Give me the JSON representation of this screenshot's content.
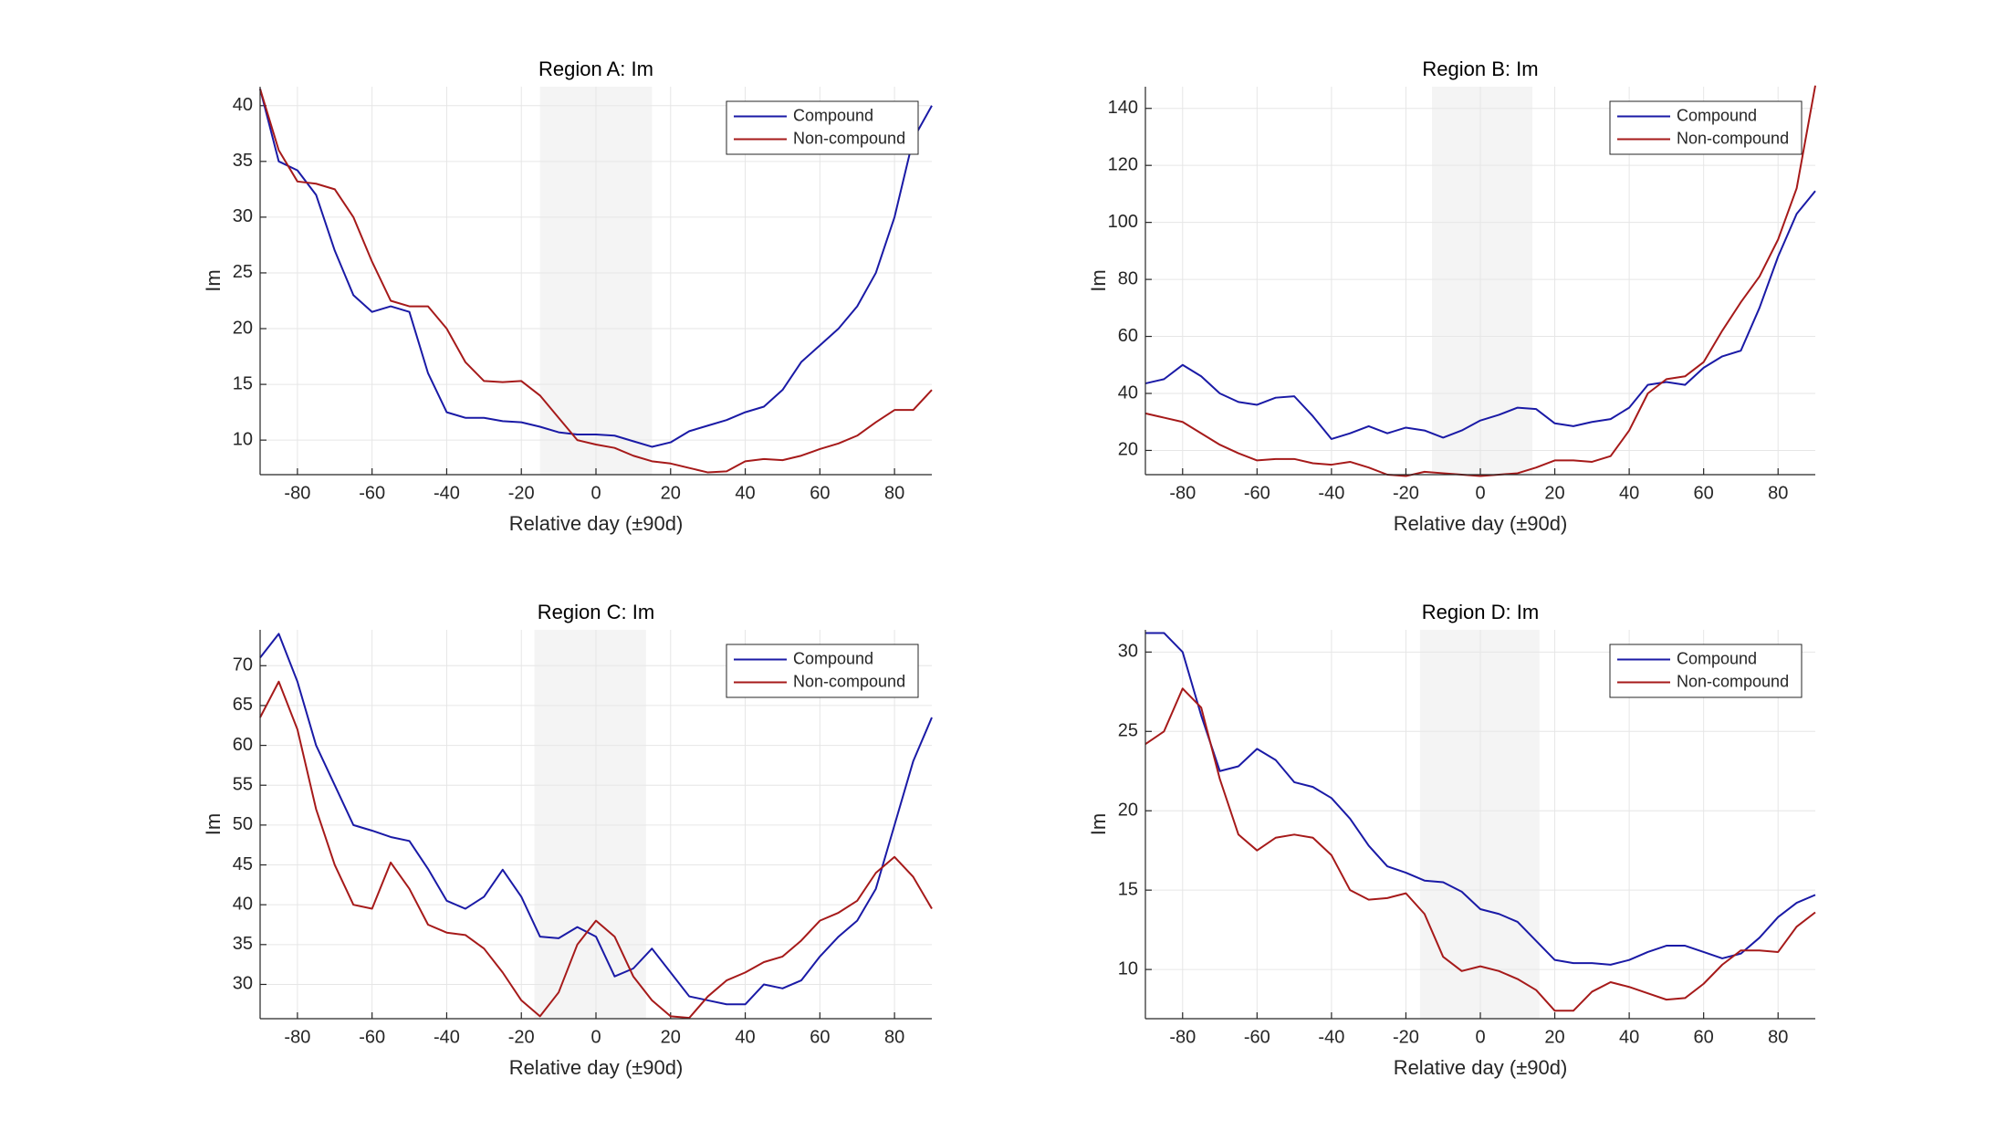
{
  "chart_data": [
    {
      "type": "line",
      "title": "Region A: Im",
      "xlabel": "Relative day (±90d)",
      "ylabel": "Im",
      "x": [
        -90,
        -85,
        -80,
        -75,
        -70,
        -65,
        -60,
        -55,
        -50,
        -45,
        -40,
        -35,
        -30,
        -25,
        -20,
        -15,
        -10,
        -5,
        0,
        5,
        10,
        15,
        20,
        25,
        30,
        35,
        40,
        45,
        50,
        55,
        60,
        65,
        70,
        75,
        80,
        85,
        90
      ],
      "series": [
        {
          "name": "Compound",
          "color": "#1a1aa6",
          "values": [
            41.5,
            35,
            34.2,
            32,
            27,
            23,
            21.5,
            22,
            21.5,
            16,
            12.5,
            12,
            12,
            11.7,
            11.6,
            11.2,
            10.7,
            10.5,
            10.5,
            10.4,
            9.9,
            9.4,
            9.8,
            10.8,
            11.3,
            11.8,
            12.5,
            13,
            14.5,
            17,
            18.5,
            20,
            22,
            25,
            30,
            37,
            40
          ]
        },
        {
          "name": "Non-compound",
          "color": "#a61a1a",
          "values": [
            41.5,
            36,
            33.2,
            33,
            32.5,
            30,
            26,
            22.5,
            22,
            22,
            20,
            17,
            15.3,
            15.2,
            15.3,
            14,
            12,
            10,
            9.6,
            9.3,
            8.6,
            8.1,
            7.9,
            7.5,
            7.1,
            7.2,
            8.1,
            8.3,
            8.2,
            8.6,
            9.2,
            9.7,
            10.4,
            11.6,
            12.7,
            12.7,
            14.5
          ]
        }
      ],
      "xlim": [
        -90,
        90
      ],
      "ylim": [
        6.9,
        41.7
      ],
      "xticks": [
        -80,
        -60,
        -40,
        -20,
        0,
        20,
        40,
        60,
        80
      ],
      "yticks": [
        10,
        15,
        20,
        25,
        30,
        35,
        40
      ],
      "grid": true,
      "legend": "northeast",
      "shaded_span": [
        -15,
        15
      ]
    },
    {
      "type": "line",
      "title": "Region B: Im",
      "xlabel": "Relative day (±90d)",
      "ylabel": "Im",
      "x": [
        -90,
        -85,
        -80,
        -75,
        -70,
        -65,
        -60,
        -55,
        -50,
        -45,
        -40,
        -35,
        -30,
        -25,
        -20,
        -15,
        -10,
        -5,
        0,
        5,
        10,
        15,
        20,
        25,
        30,
        35,
        40,
        45,
        50,
        55,
        60,
        65,
        70,
        75,
        80,
        85,
        90
      ],
      "series": [
        {
          "name": "Compound",
          "color": "#1a1aa6",
          "values": [
            43.5,
            45,
            50,
            46,
            40,
            37,
            36,
            38.5,
            39,
            32,
            24,
            26,
            28.5,
            26,
            28,
            27,
            24.5,
            27,
            30.5,
            32.5,
            35,
            34.5,
            29.5,
            28.5,
            30,
            31,
            35,
            43,
            44,
            43,
            49,
            53,
            55,
            70,
            88,
            103,
            111
          ]
        },
        {
          "name": "Non-compound",
          "color": "#a61a1a",
          "values": [
            33,
            31.5,
            30,
            26,
            22,
            19,
            16.5,
            17,
            17,
            15.5,
            15,
            16,
            14,
            11.5,
            11,
            12.5,
            12,
            11.5,
            11,
            11.5,
            12,
            14,
            16.5,
            16.5,
            16,
            18,
            27,
            40,
            45,
            46,
            51,
            62,
            72,
            81,
            94,
            112,
            148
          ]
        }
      ],
      "xlim": [
        -90,
        90
      ],
      "ylim": [
        11.5,
        147.6
      ],
      "xticks": [
        -80,
        -60,
        -40,
        -20,
        0,
        20,
        40,
        60,
        80
      ],
      "yticks": [
        20,
        40,
        60,
        80,
        100,
        120,
        140
      ],
      "grid": true,
      "legend": "northeast",
      "shaded_span": [
        -13,
        14
      ]
    },
    {
      "type": "line",
      "title": "Region C: Im",
      "xlabel": "Relative day (±90d)",
      "ylabel": "Im",
      "x": [
        -90,
        -85,
        -80,
        -75,
        -70,
        -65,
        -60,
        -55,
        -50,
        -45,
        -40,
        -35,
        -30,
        -25,
        -20,
        -15,
        -10,
        -5,
        0,
        5,
        10,
        15,
        20,
        25,
        30,
        35,
        40,
        45,
        50,
        55,
        60,
        65,
        70,
        75,
        80,
        85,
        90
      ],
      "series": [
        {
          "name": "Compound",
          "color": "#1a1aa6",
          "values": [
            71,
            74,
            68,
            60,
            55,
            50,
            49.3,
            48.5,
            48,
            44.5,
            40.5,
            39.5,
            41,
            44.4,
            41,
            36,
            35.8,
            37.2,
            36,
            31,
            32,
            34.5,
            31.5,
            28.5,
            28,
            27.5,
            27.5,
            30,
            29.5,
            30.5,
            33.5,
            36,
            38,
            42,
            50,
            58,
            63.5
          ]
        },
        {
          "name": "Non-compound",
          "color": "#a61a1a",
          "values": [
            63.5,
            68,
            62,
            52,
            45,
            40,
            39.5,
            45.3,
            42,
            37.5,
            36.5,
            36.2,
            34.5,
            31.5,
            28,
            26,
            29,
            35,
            38,
            36,
            31,
            28,
            26,
            25.8,
            28.5,
            30.5,
            31.5,
            32.8,
            33.5,
            35.5,
            38,
            39,
            40.5,
            44,
            46,
            43.5,
            39.5
          ]
        }
      ],
      "xlim": [
        -90,
        90
      ],
      "ylim": [
        25.7,
        74.5
      ],
      "xticks": [
        -80,
        -60,
        -40,
        -20,
        0,
        20,
        40,
        60,
        80
      ],
      "yticks": [
        30,
        35,
        40,
        45,
        50,
        55,
        60,
        65,
        70
      ],
      "grid": true,
      "legend": "northeast",
      "shaded_span": [
        -16.5,
        13.4
      ]
    },
    {
      "type": "line",
      "title": "Region D: Im",
      "xlabel": "Relative day (±90d)",
      "ylabel": "Im",
      "x": [
        -90,
        -85,
        -80,
        -75,
        -70,
        -65,
        -60,
        -55,
        -50,
        -45,
        -40,
        -35,
        -30,
        -25,
        -20,
        -15,
        -10,
        -5,
        0,
        5,
        10,
        15,
        20,
        25,
        30,
        35,
        40,
        45,
        50,
        55,
        60,
        65,
        70,
        75,
        80,
        85,
        90
      ],
      "series": [
        {
          "name": "Compound",
          "color": "#1a1aa6",
          "values": [
            31.2,
            31.2,
            30,
            26,
            22.5,
            22.8,
            23.9,
            23.2,
            21.8,
            21.5,
            20.8,
            19.5,
            17.8,
            16.5,
            16.1,
            15.6,
            15.5,
            14.9,
            13.8,
            13.5,
            13,
            11.8,
            10.6,
            10.4,
            10.4,
            10.3,
            10.6,
            11.1,
            11.5,
            11.5,
            11.1,
            10.7,
            11,
            12,
            13.3,
            14.2,
            14.7
          ]
        },
        {
          "name": "Non-compound",
          "color": "#a61a1a",
          "values": [
            24.2,
            25,
            27.7,
            26.5,
            22,
            18.5,
            17.5,
            18.3,
            18.5,
            18.3,
            17.2,
            15,
            14.4,
            14.5,
            14.8,
            13.5,
            10.8,
            9.9,
            10.2,
            9.9,
            9.4,
            8.7,
            7.4,
            7.4,
            8.6,
            9.2,
            8.9,
            8.5,
            8.1,
            8.2,
            9.1,
            10.3,
            11.2,
            11.2,
            11.1,
            12.7,
            13.6
          ]
        }
      ],
      "xlim": [
        -90,
        90
      ],
      "ylim": [
        6.9,
        31.4
      ],
      "xticks": [
        -80,
        -60,
        -40,
        -20,
        0,
        20,
        40,
        60,
        80
      ],
      "yticks": [
        10,
        15,
        20,
        25,
        30
      ],
      "grid": true,
      "legend": "northeast",
      "shaded_span": [
        -16.2,
        15.9
      ]
    }
  ]
}
